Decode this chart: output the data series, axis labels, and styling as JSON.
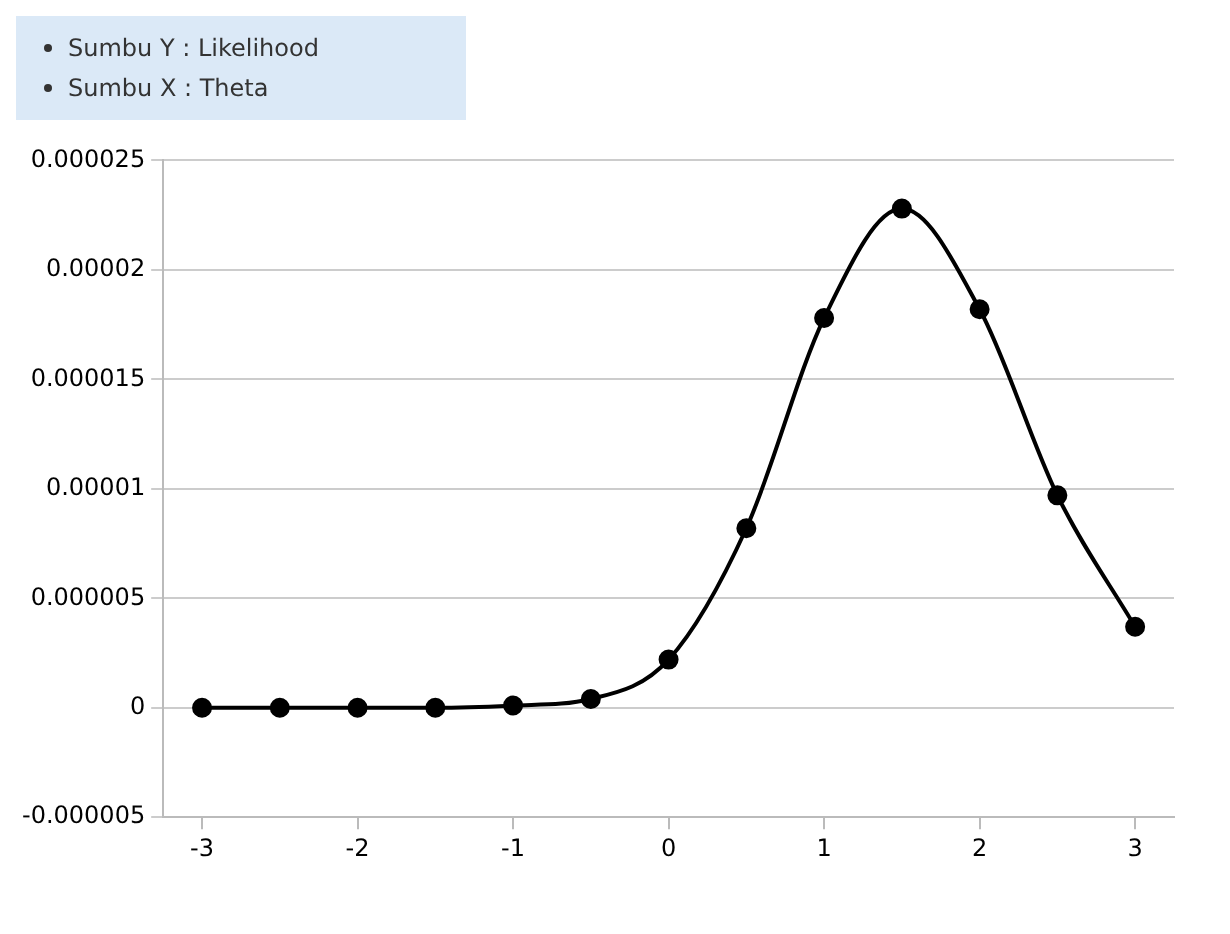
{
  "chart_data": {
    "type": "line",
    "annotations": [
      "Sumbu Y : Likelihood",
      "Sumbu X : Theta"
    ],
    "x": [
      -3,
      -2.5,
      -2,
      -1.5,
      -1,
      -0.5,
      0,
      0.5,
      1,
      1.5,
      2,
      2.5,
      3
    ],
    "series": [
      {
        "color": "#000000",
        "values": [
          0,
          0,
          0,
          0,
          1e-07,
          4e-07,
          2.2e-06,
          8.2e-06,
          1.78e-05,
          2.28e-05,
          1.82e-05,
          9.7e-06,
          3.7e-06
        ]
      }
    ],
    "xlim": [
      -3.25,
      3.25
    ],
    "xticks": [
      -3,
      -2,
      -1,
      0,
      1,
      2,
      3
    ],
    "ylim": [
      -5e-06,
      2.5e-05
    ],
    "yticks": [
      {
        "value": -5e-06,
        "label": "-0.000005"
      },
      {
        "value": 0,
        "label": "0"
      },
      {
        "value": 5e-06,
        "label": "0.000005"
      },
      {
        "value": 1e-05,
        "label": "0.00001"
      },
      {
        "value": 1.5e-05,
        "label": "0.000015"
      },
      {
        "value": 2e-05,
        "label": "0.00002"
      },
      {
        "value": 2.5e-05,
        "label": "0.000025"
      }
    ],
    "grid": "y",
    "marker": "circle",
    "line_style": "solid"
  }
}
